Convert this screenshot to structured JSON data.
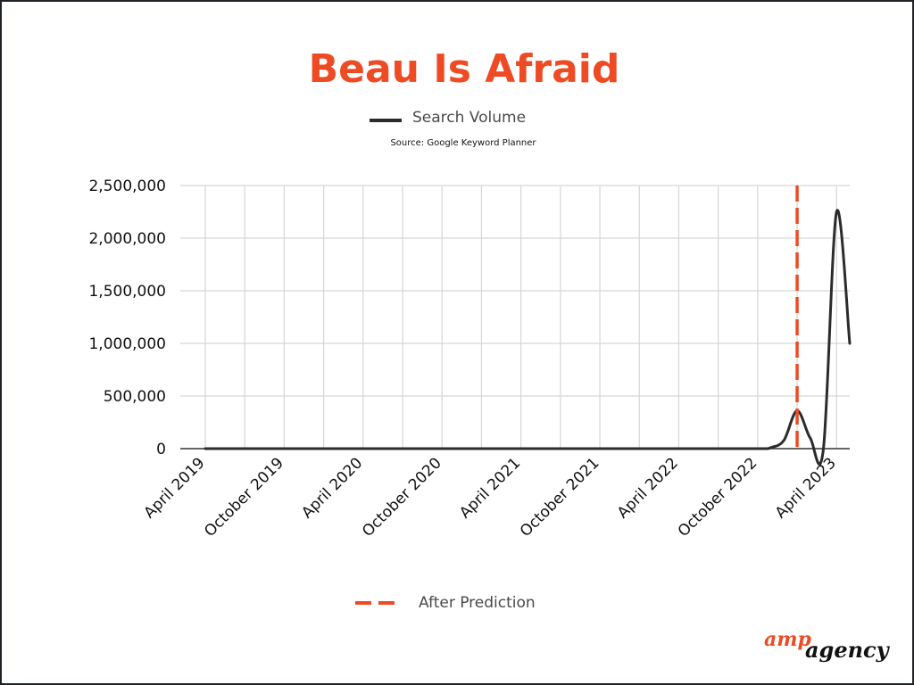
{
  "chart_data": {
    "type": "line",
    "title": "Beau Is Afraid",
    "source": "Source: Google Keyword Planner",
    "xlabel": "",
    "ylabel": "",
    "x_tick_labels": [
      "April 2019",
      "October 2019",
      "April 2020",
      "October 2020",
      "April 2021",
      "October 2021",
      "April 2022",
      "October 2022",
      "April 2023"
    ],
    "x_ticks": [
      "2019-04",
      "2019-10",
      "2020-04",
      "2020-10",
      "2021-04",
      "2021-10",
      "2022-04",
      "2022-10",
      "2023-04"
    ],
    "x_range": [
      "2019-04",
      "2023-05"
    ],
    "ylim": [
      0,
      2500000
    ],
    "y_ticks": [
      0,
      500000,
      1000000,
      1500000,
      2000000,
      2500000
    ],
    "y_tick_labels": [
      "0",
      "500,000",
      "1,000,000",
      "1,500,000",
      "2,000,000",
      "2,500,000"
    ],
    "grid": true,
    "series": [
      {
        "name": "Search Volume",
        "color": "#2b2b2b",
        "x": [
          "2019-04",
          "2019-10",
          "2020-04",
          "2020-10",
          "2021-04",
          "2021-10",
          "2022-04",
          "2022-10",
          "2022-11",
          "2022-12",
          "2023-01",
          "2023-02",
          "2023-03",
          "2023-04",
          "2023-05"
        ],
        "y": [
          0,
          0,
          0,
          0,
          0,
          0,
          0,
          0,
          10000,
          80000,
          360000,
          100000,
          0,
          2250000,
          1000000
        ]
      }
    ],
    "reference_lines": [
      {
        "name": "After Prediction",
        "x": "2023-01",
        "color": "#ee4b25",
        "style": "dashed"
      }
    ],
    "legend": {
      "top": "Search Volume",
      "bottom": "After Prediction"
    }
  },
  "logo": {
    "part1": "amp",
    "part2": "agency",
    "accent": "#ee4b25"
  }
}
